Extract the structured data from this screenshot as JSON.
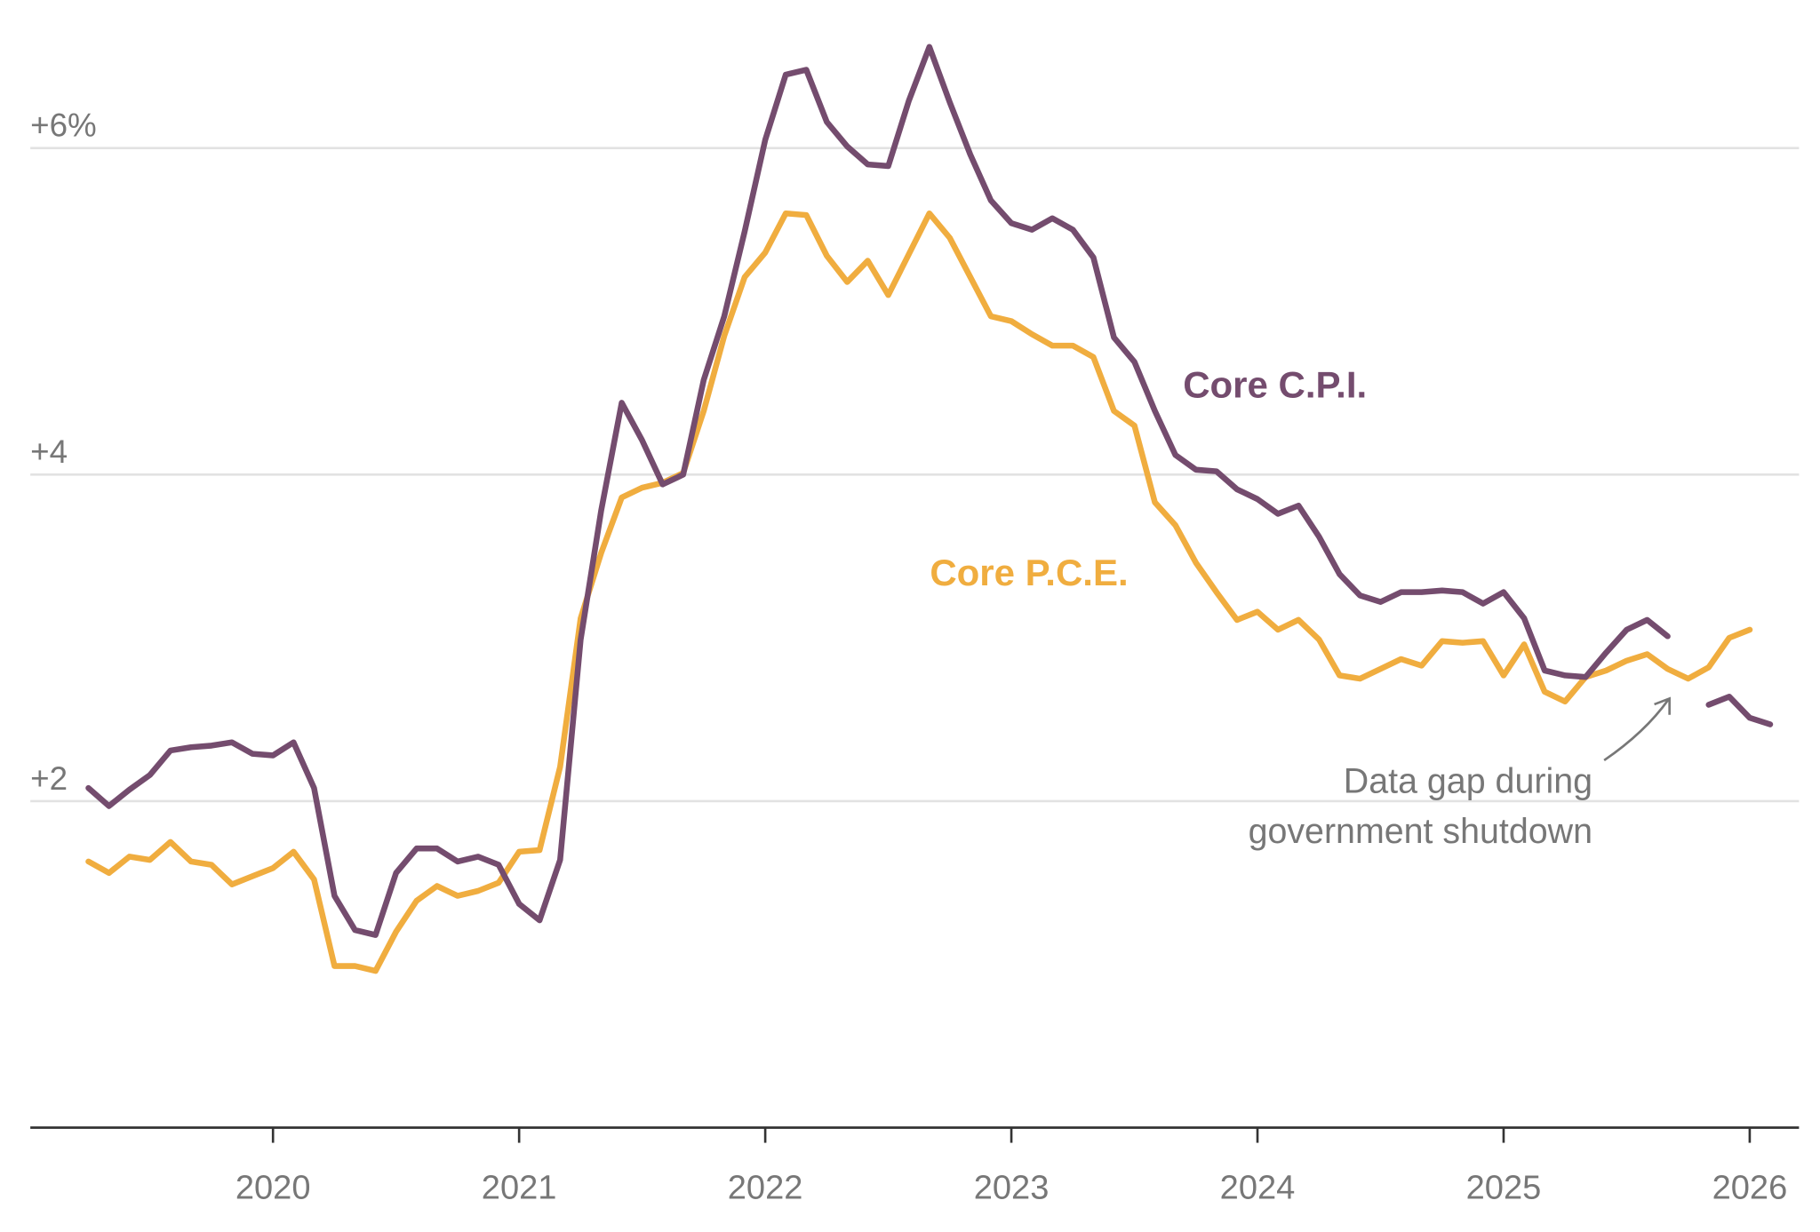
{
  "chart_data": {
    "type": "line",
    "title": "",
    "xlabel": "",
    "ylabel": "",
    "x_start": "2019-04",
    "frequency": "monthly",
    "x_ticks": [
      "2020",
      "2021",
      "2022",
      "2023",
      "2024",
      "2025",
      "2026"
    ],
    "y_ticks": [
      {
        "value": 2,
        "label": "+2"
      },
      {
        "value": 4,
        "label": "+4"
      },
      {
        "value": 6,
        "label": "+6%"
      }
    ],
    "ylim": [
      0,
      6.9
    ],
    "grid": true,
    "series": [
      {
        "name": "Core C.P.I.",
        "color": "#744c6e",
        "values": [
          2.08,
          1.97,
          2.07,
          2.16,
          2.31,
          2.33,
          2.34,
          2.36,
          2.29,
          2.28,
          2.36,
          2.08,
          1.42,
          1.21,
          1.18,
          1.56,
          1.71,
          1.71,
          1.63,
          1.66,
          1.61,
          1.37,
          1.27,
          1.64,
          2.99,
          3.78,
          4.44,
          4.21,
          3.94,
          4.0,
          4.58,
          4.97,
          5.49,
          6.05,
          6.45,
          6.48,
          6.16,
          6.01,
          5.9,
          5.89,
          6.29,
          6.62,
          6.28,
          5.96,
          5.68,
          5.54,
          5.5,
          5.57,
          5.5,
          5.33,
          4.84,
          4.69,
          4.39,
          4.12,
          4.03,
          4.02,
          3.91,
          3.85,
          3.76,
          3.81,
          3.62,
          3.39,
          3.26,
          3.22,
          3.28,
          3.28,
          3.29,
          3.28,
          3.21,
          3.28,
          3.12,
          2.8,
          2.77,
          2.76,
          2.91,
          3.05,
          3.11,
          3.01,
          null,
          2.59,
          2.64,
          2.51,
          2.47
        ]
      },
      {
        "name": "Core P.C.E.",
        "color": "#f0ad3f",
        "values": [
          1.63,
          1.56,
          1.66,
          1.64,
          1.75,
          1.63,
          1.61,
          1.49,
          1.54,
          1.59,
          1.69,
          1.52,
          0.99,
          0.99,
          0.96,
          1.2,
          1.39,
          1.48,
          1.42,
          1.45,
          1.5,
          1.69,
          1.7,
          2.21,
          3.12,
          3.52,
          3.86,
          3.92,
          3.95,
          4.01,
          4.39,
          4.85,
          5.21,
          5.36,
          5.6,
          5.59,
          5.34,
          5.18,
          5.31,
          5.1,
          5.35,
          5.6,
          5.45,
          5.21,
          4.97,
          4.94,
          4.86,
          4.79,
          4.79,
          4.72,
          4.39,
          4.3,
          3.83,
          3.69,
          3.46,
          3.28,
          3.11,
          3.16,
          3.05,
          3.11,
          2.99,
          2.77,
          2.75,
          2.81,
          2.87,
          2.83,
          2.98,
          2.97,
          2.98,
          2.77,
          2.96,
          2.67,
          2.61,
          2.76,
          2.8,
          2.86,
          2.9,
          2.81,
          2.75,
          2.82,
          3.0,
          3.05
        ]
      }
    ],
    "annotations": [
      {
        "lines": [
          "Data gap during",
          "government shutdown"
        ],
        "target": "2025-10"
      }
    ]
  }
}
